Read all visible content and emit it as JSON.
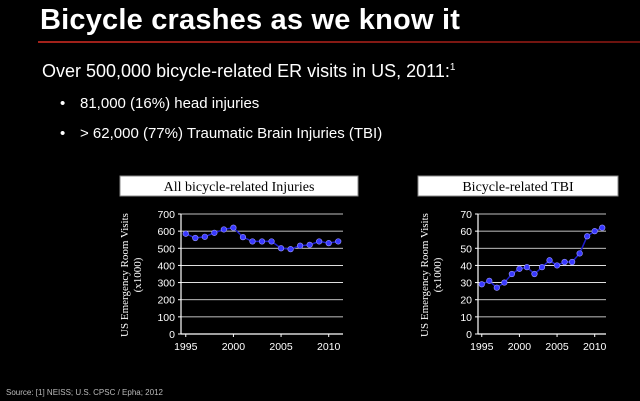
{
  "slide": {
    "title": "Bicycle crashes as we know it",
    "heading": "Over 500,000 bicycle-related ER visits in US, 2011:",
    "heading_ref": "1",
    "bullets": [
      "81,000 (16%) head injuries",
      "> 62,000 (77%) Traumatic Brain Injuries (TBI)"
    ],
    "bullet_glyph": "•",
    "source": "Source: [1] NEISS; U.S. CPSC / Epha; 2012"
  },
  "colors": {
    "title_rule": "#a4221b",
    "line": "#1d1dcc",
    "marker": "#3838ff"
  },
  "chart_data": [
    {
      "type": "line",
      "title": "All bicycle-related Injuries",
      "ylabel": "US Emergency Room Visits (x1000)",
      "xlabel": "",
      "x": [
        1995,
        1996,
        1997,
        1998,
        1999,
        2000,
        2001,
        2002,
        2003,
        2004,
        2005,
        2006,
        2007,
        2008,
        2009,
        2010,
        2011
      ],
      "values": [
        585,
        560,
        567,
        590,
        610,
        620,
        565,
        540,
        540,
        540,
        500,
        495,
        515,
        520,
        540,
        530,
        540
      ],
      "xlim": [
        1994.5,
        2011.5
      ],
      "ylim": [
        0,
        700
      ],
      "xticks": [
        1995,
        2000,
        2005,
        2010
      ],
      "yticks": [
        0,
        100,
        200,
        300,
        400,
        500,
        600,
        700
      ],
      "grid": true,
      "legend": "none"
    },
    {
      "type": "line",
      "title": "Bicycle-related TBI",
      "ylabel": "US Emergency Room Visits (x1000)",
      "xlabel": "",
      "x": [
        1995,
        1996,
        1997,
        1998,
        1999,
        2000,
        2001,
        2002,
        2003,
        2004,
        2005,
        2006,
        2007,
        2008,
        2009,
        2010,
        2011
      ],
      "values": [
        29,
        31,
        27,
        30,
        35,
        38,
        39,
        35,
        39,
        43,
        40,
        42,
        42,
        47,
        57,
        60,
        62
      ],
      "xlim": [
        1994.5,
        2011.5
      ],
      "ylim": [
        0,
        70
      ],
      "xticks": [
        1995,
        2000,
        2005,
        2010
      ],
      "yticks": [
        0,
        10,
        20,
        30,
        40,
        50,
        60,
        70
      ],
      "grid": true,
      "legend": "none"
    }
  ]
}
